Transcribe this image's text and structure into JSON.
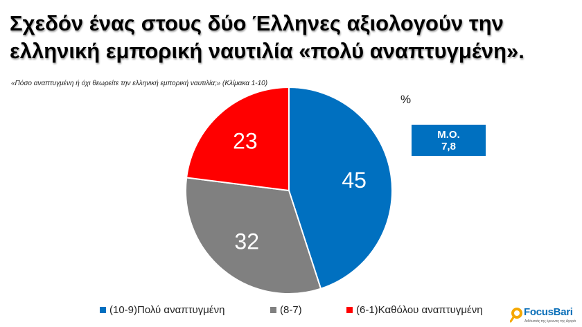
{
  "title": {
    "line1": "Σχεδόν ένας στους δύο Έλληνες αξιολογούν την",
    "line2": "ελληνική εμπορική ναυτιλία «πολύ αναπτυγμένη»."
  },
  "question": "«Πόσο αναπτυγμένη ή όχι θεωρείτε την ελληνική εμπορική ναυτιλία;»  (Κλίμακα 1-10)",
  "percent_sign": "%",
  "mean": {
    "label": "Μ.Ο.",
    "value": "7,8",
    "color": "#0070c0"
  },
  "chart_data": {
    "type": "pie",
    "categories": [
      "(10-9)Πολύ αναπτυγμένη",
      "(8-7)",
      "(6-1)Καθόλου αναπτυγμένη"
    ],
    "values": [
      45,
      32,
      23
    ],
    "labels": [
      "45",
      "32",
      "23"
    ],
    "colors": [
      "#0070c0",
      "#808080",
      "#ff0000"
    ],
    "start": "12 o'clock",
    "direction": "clockwise",
    "legend_position": "bottom"
  },
  "logo": {
    "name": "FocusBari",
    "tagline": "Αιθόυσιάς της έρευνας της Αγορά"
  }
}
